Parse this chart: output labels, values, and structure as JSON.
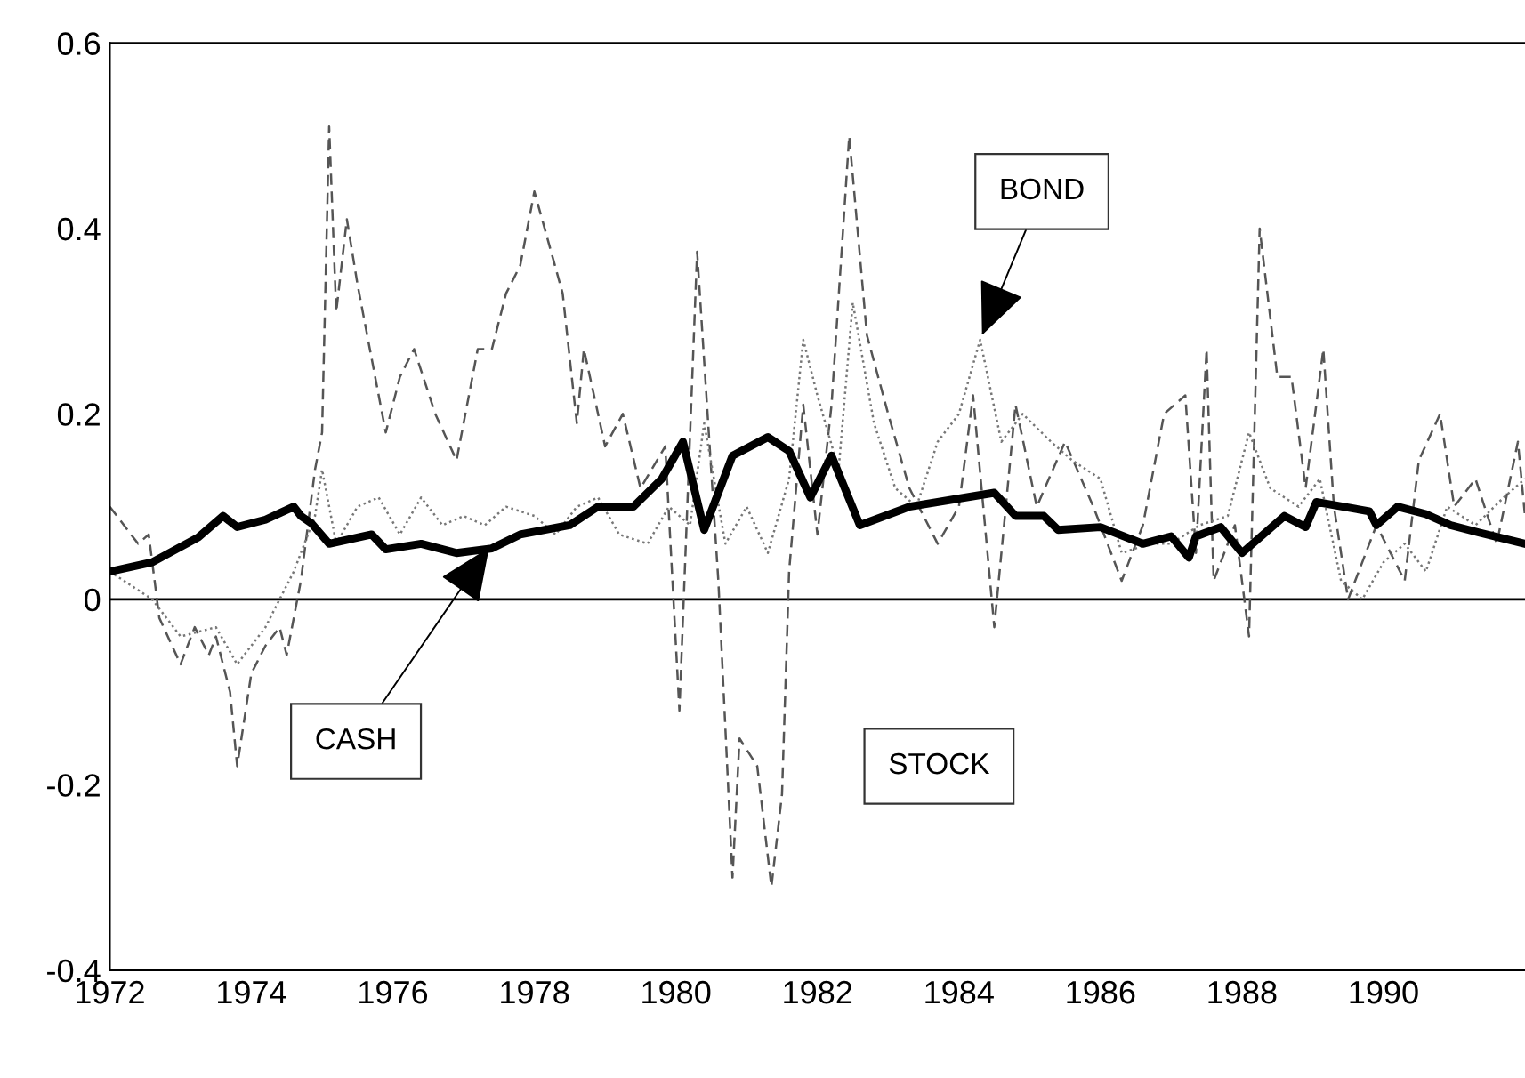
{
  "chart_data": {
    "type": "line",
    "xlim": [
      1972,
      1992
    ],
    "xticks": [
      1972,
      1974,
      1976,
      1978,
      1980,
      1982,
      1984,
      1986,
      1988,
      1990
    ],
    "ylim": [
      -0.4,
      0.6
    ],
    "yticks": [
      -0.4,
      -0.2,
      0,
      0.2,
      0.4,
      0.6
    ],
    "grid": false,
    "legend": false,
    "ref_lines": [
      {
        "axis": "y",
        "value": 0,
        "color": "#000000",
        "line_style": "solid"
      }
    ],
    "series": [
      {
        "color": "#555555",
        "line_style": "dashed",
        "x": [
          1972,
          1972.4,
          1972.55,
          1972.7,
          1973.0,
          1973.2,
          1973.4,
          1973.5,
          1973.7,
          1973.8,
          1974.0,
          1974.2,
          1974.4,
          1974.5,
          1974.7,
          1974.9,
          1975.0,
          1975.1,
          1975.2,
          1975.35,
          1975.5,
          1975.7,
          1975.9,
          1976.1,
          1976.3,
          1976.6,
          1976.9,
          1977.2,
          1977.4,
          1977.6,
          1977.8,
          1978.0,
          1978.4,
          1978.6,
          1978.7,
          1979.0,
          1979.25,
          1979.5,
          1979.85,
          1980.05,
          1980.3,
          1980.6,
          1980.8,
          1980.9,
          1981.15,
          1981.35,
          1981.5,
          1981.6,
          1981.8,
          1982.0,
          1982.2,
          1982.45,
          1982.7,
          1983.0,
          1983.3,
          1983.7,
          1984.0,
          1984.2,
          1984.5,
          1984.8,
          1985.1,
          1985.5,
          1985.9,
          1986.3,
          1986.6,
          1986.9,
          1987.2,
          1987.35,
          1987.5,
          1987.6,
          1987.9,
          1988.1,
          1988.25,
          1988.5,
          1988.7,
          1988.9,
          1989.15,
          1989.3,
          1989.5,
          1989.9,
          1990.3,
          1990.5,
          1990.8,
          1991.0,
          1991.3,
          1991.6,
          1991.9,
          1992
        ],
        "values": [
          0.1,
          0.06,
          0.07,
          -0.02,
          -0.07,
          -0.03,
          -0.06,
          -0.04,
          -0.1,
          -0.18,
          -0.08,
          -0.05,
          -0.03,
          -0.06,
          0.02,
          0.14,
          0.18,
          0.51,
          0.31,
          0.41,
          0.34,
          0.26,
          0.18,
          0.24,
          0.27,
          0.2,
          0.15,
          0.27,
          0.27,
          0.33,
          0.36,
          0.44,
          0.33,
          0.19,
          0.27,
          0.165,
          0.2,
          0.12,
          0.165,
          -0.12,
          0.375,
          0.02,
          -0.3,
          -0.15,
          -0.18,
          -0.31,
          -0.21,
          0.03,
          0.21,
          0.07,
          0.21,
          0.5,
          0.285,
          0.2,
          0.12,
          0.06,
          0.1,
          0.22,
          -0.03,
          0.21,
          0.1,
          0.17,
          0.1,
          0.02,
          0.08,
          0.2,
          0.22,
          0.05,
          0.27,
          0.02,
          0.08,
          -0.04,
          0.4,
          0.24,
          0.24,
          0.12,
          0.27,
          0.1,
          0.0,
          0.08,
          0.02,
          0.15,
          0.2,
          0.1,
          0.13,
          0.06,
          0.17,
          0.09
        ]
      },
      {
        "color": "#777777",
        "line_style": "dotted",
        "x": [
          1972,
          1972.6,
          1973.0,
          1973.5,
          1973.8,
          1974.2,
          1974.6,
          1974.9,
          1975.0,
          1975.2,
          1975.5,
          1975.8,
          1976.1,
          1976.4,
          1976.7,
          1977.0,
          1977.3,
          1977.6,
          1978.0,
          1978.3,
          1978.6,
          1978.9,
          1979.2,
          1979.6,
          1979.9,
          1980.2,
          1980.4,
          1980.7,
          1981.0,
          1981.3,
          1981.6,
          1981.8,
          1982.0,
          1982.3,
          1982.5,
          1982.8,
          1983.1,
          1983.4,
          1983.7,
          1984.0,
          1984.3,
          1984.6,
          1984.9,
          1985.3,
          1985.6,
          1986.0,
          1986.3,
          1986.7,
          1987.0,
          1987.4,
          1987.8,
          1988.1,
          1988.4,
          1988.8,
          1989.1,
          1989.4,
          1989.7,
          1990.0,
          1990.3,
          1990.6,
          1990.9,
          1991.3,
          1991.7,
          1992
        ],
        "values": [
          0.03,
          0.0,
          -0.04,
          -0.03,
          -0.07,
          -0.03,
          0.03,
          0.09,
          0.14,
          0.06,
          0.1,
          0.11,
          0.07,
          0.11,
          0.08,
          0.09,
          0.08,
          0.1,
          0.09,
          0.07,
          0.1,
          0.11,
          0.07,
          0.06,
          0.1,
          0.08,
          0.19,
          0.06,
          0.1,
          0.05,
          0.13,
          0.28,
          0.22,
          0.14,
          0.32,
          0.19,
          0.12,
          0.1,
          0.17,
          0.2,
          0.28,
          0.17,
          0.2,
          0.17,
          0.15,
          0.13,
          0.05,
          0.06,
          0.06,
          0.08,
          0.09,
          0.18,
          0.12,
          0.1,
          0.13,
          0.02,
          0.0,
          0.04,
          0.06,
          0.03,
          0.1,
          0.08,
          0.11,
          0.13
        ]
      },
      {
        "color": "#000000",
        "line_style": "solid",
        "x": [
          1972,
          1972.6,
          1973.25,
          1973.6,
          1973.8,
          1974.2,
          1974.6,
          1974.7,
          1974.85,
          1975.1,
          1975.7,
          1975.9,
          1976.4,
          1976.9,
          1977.4,
          1977.8,
          1978.5,
          1978.9,
          1979.4,
          1979.8,
          1980.1,
          1980.4,
          1980.8,
          1981.3,
          1981.6,
          1981.9,
          1982.2,
          1982.6,
          1983.3,
          1984.5,
          1984.8,
          1985.2,
          1985.4,
          1986.0,
          1986.6,
          1987.0,
          1987.25,
          1987.35,
          1987.7,
          1988.0,
          1988.6,
          1988.9,
          1989.05,
          1989.8,
          1989.9,
          1990.2,
          1990.6,
          1990.95,
          1991.35,
          1992
        ],
        "values": [
          0.03,
          0.04,
          0.067,
          0.09,
          0.078,
          0.086,
          0.1,
          0.09,
          0.082,
          0.06,
          0.07,
          0.054,
          0.06,
          0.05,
          0.055,
          0.07,
          0.08,
          0.1,
          0.1,
          0.13,
          0.17,
          0.075,
          0.155,
          0.175,
          0.16,
          0.11,
          0.155,
          0.08,
          0.1,
          0.115,
          0.09,
          0.09,
          0.075,
          0.078,
          0.06,
          0.068,
          0.045,
          0.068,
          0.078,
          0.05,
          0.09,
          0.078,
          0.105,
          0.095,
          0.08,
          0.1,
          0.092,
          0.08,
          0.072,
          0.06
        ]
      }
    ],
    "annotations": [
      {
        "text": "CASH",
        "x": 1977.4,
        "y": 0.06
      },
      {
        "text": "BOND",
        "x": 1984.3,
        "y": 0.28
      },
      "STOCK"
    ]
  }
}
